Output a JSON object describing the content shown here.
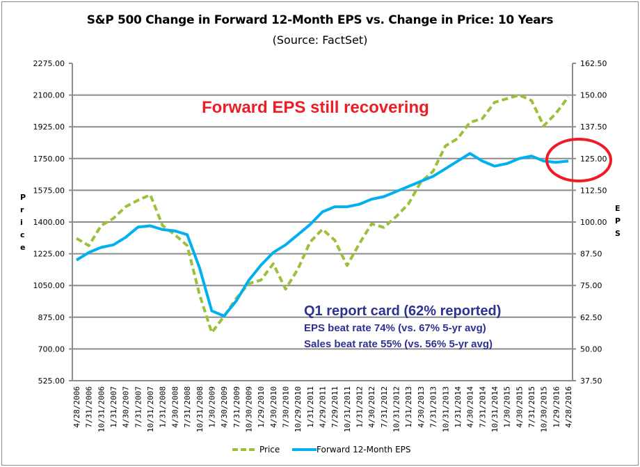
{
  "chart_data": {
    "type": "line",
    "title": "S&P 500 Change in Forward 12-Month EPS vs. Change in Price: 10 Years",
    "subtitle": "(Source: FactSet)",
    "ylabel_left": "Price",
    "ylabel_right": "EPS",
    "ylim_left": [
      525,
      2275
    ],
    "ylim_right": [
      37.5,
      162.5
    ],
    "yticks_left": [
      "2275.00",
      "2100.00",
      "1925.00",
      "1750.00",
      "1575.00",
      "1400.00",
      "1225.00",
      "1050.00",
      "875.00",
      "700.00",
      "525.00"
    ],
    "yticks_right": [
      "162.50",
      "150.00",
      "137.50",
      "125.00",
      "112.50",
      "100.00",
      "87.50",
      "75.00",
      "62.50",
      "50.00",
      "37.50"
    ],
    "grid": true,
    "legend_position": "bottom",
    "x_tick_labels": [
      "4/28/2006",
      "7/31/2006",
      "10/31/2006",
      "1/31/2007",
      "4/30/2007",
      "7/31/2007",
      "10/31/2007",
      "1/31/2008",
      "4/30/2008",
      "7/31/2008",
      "10/31/2008",
      "1/30/2009",
      "4/30/2009",
      "7/31/2009",
      "10/30/2009",
      "1/29/2010",
      "4/30/2010",
      "7/30/2010",
      "10/29/2010",
      "1/31/2011",
      "4/29/2011",
      "7/29/2011",
      "10/31/2011",
      "1/31/2012",
      "4/30/2012",
      "7/31/2012",
      "10/31/2012",
      "1/31/2013",
      "4/30/2013",
      "7/31/2013",
      "10/31/2013",
      "1/31/2014",
      "4/30/2014",
      "7/31/2014",
      "10/31/2014",
      "1/30/2015",
      "4/30/2015",
      "7/31/2015",
      "10/30/2015",
      "1/29/2016",
      "4/28/2016"
    ],
    "series": [
      {
        "name": "Price",
        "axis": "left",
        "color": "#9bc13c",
        "style": "dashed",
        "values": [
          1310,
          1270,
          1380,
          1420,
          1485,
          1520,
          1550,
          1380,
          1330,
          1270,
          1000,
          790,
          880,
          980,
          1060,
          1080,
          1170,
          1030,
          1140,
          1290,
          1360,
          1300,
          1160,
          1280,
          1390,
          1370,
          1430,
          1500,
          1620,
          1680,
          1820,
          1860,
          1950,
          1970,
          2060,
          2080,
          2100,
          2070,
          1930,
          2000,
          2090
        ]
      },
      {
        "name": "Forward 12-Month EPS",
        "axis": "right",
        "color": "#00b0f0",
        "style": "solid",
        "values": [
          85,
          88,
          90,
          91,
          94,
          98,
          98.5,
          97,
          96.5,
          95,
          82,
          65,
          63,
          69,
          77,
          83,
          88,
          91,
          95,
          99,
          104,
          106,
          106,
          107,
          109,
          110,
          112,
          114,
          116,
          118,
          121,
          124,
          127,
          124,
          122,
          123,
          125,
          126,
          124,
          123.5,
          124
        ]
      }
    ],
    "annotations": {
      "headline": "Forward EPS still recovering",
      "report_title": "Q1 report card (62% reported)",
      "report_line1": "EPS beat rate 74% (vs. 67% 5-yr avg)",
      "report_line2": "Sales beat rate 55% (vs. 56% 5-yr avg)"
    },
    "highlight_color": "#ee1c25",
    "annotation_color": "#2e3192"
  }
}
